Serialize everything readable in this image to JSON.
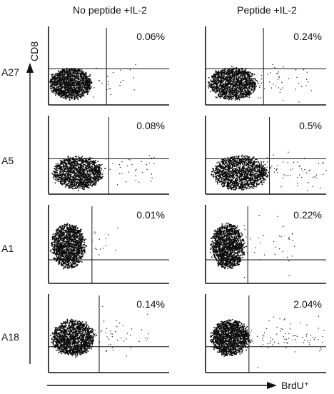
{
  "chart_data": {
    "type": "scatter",
    "column_headers": [
      "No peptide +IL-2",
      "Peptide +IL-2"
    ],
    "row_labels": [
      "A27",
      "A5",
      "A1",
      "A18"
    ],
    "ylabel": "CD8",
    "xlabel": "BrdU⁺",
    "panels": [
      {
        "row": "A27",
        "column": "No peptide +IL-2",
        "percent_label": "0.06%",
        "cluster": {
          "cx": 0.18,
          "cy": 0.72,
          "rx": 0.17,
          "ry": 0.19
        },
        "scatter_level": 0.2
      },
      {
        "row": "A27",
        "column": "Peptide +IL-2",
        "percent_label": "0.24%",
        "cluster": {
          "cx": 0.22,
          "cy": 0.72,
          "rx": 0.19,
          "ry": 0.2
        },
        "scatter_level": 0.5
      },
      {
        "row": "A5",
        "column": "No peptide +IL-2",
        "percent_label": "0.08%",
        "cluster": {
          "cx": 0.24,
          "cy": 0.72,
          "rx": 0.2,
          "ry": 0.2
        },
        "scatter_level": 0.4
      },
      {
        "row": "A5",
        "column": "Peptide +IL-2",
        "percent_label": "0.5%",
        "cluster": {
          "cx": 0.28,
          "cy": 0.72,
          "rx": 0.22,
          "ry": 0.21
        },
        "scatter_level": 0.8
      },
      {
        "row": "A1",
        "column": "No peptide +IL-2",
        "percent_label": "0.01%",
        "cluster": {
          "cx": 0.16,
          "cy": 0.52,
          "rx": 0.13,
          "ry": 0.28
        },
        "scatter_level": 0.1
      },
      {
        "row": "A1",
        "column": "Peptide +IL-2",
        "percent_label": "0.22%",
        "cluster": {
          "cx": 0.18,
          "cy": 0.52,
          "rx": 0.13,
          "ry": 0.28
        },
        "scatter_level": 0.4
      },
      {
        "row": "A18",
        "column": "No peptide +IL-2",
        "percent_label": "0.14%",
        "cluster": {
          "cx": 0.2,
          "cy": 0.55,
          "rx": 0.17,
          "ry": 0.22
        },
        "scatter_level": 0.5
      },
      {
        "row": "A18",
        "column": "Peptide +IL-2",
        "percent_label": "2.04%",
        "cluster": {
          "cx": 0.2,
          "cy": 0.55,
          "rx": 0.15,
          "ry": 0.22
        },
        "scatter_level": 1.0
      }
    ]
  }
}
